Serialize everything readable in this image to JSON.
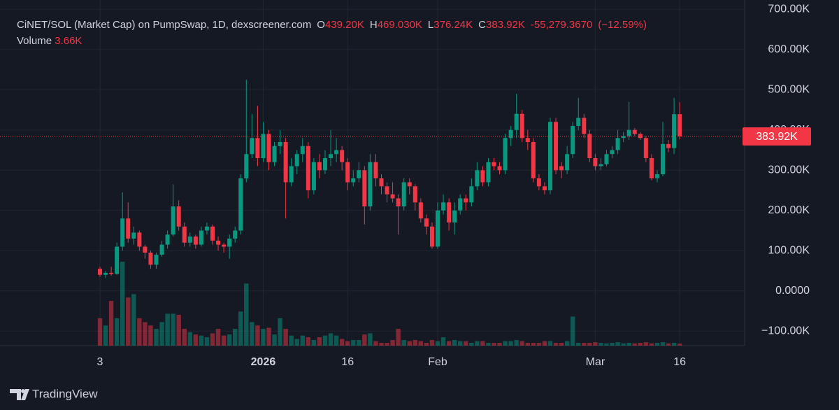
{
  "header": {
    "title": "CiNET/SOL (Market Cap) on PumpSwap, 1D, dexscreener.com",
    "ohlc": [
      {
        "key": "O",
        "label": "439.20K"
      },
      {
        "key": "H",
        "label": "469.030K"
      },
      {
        "key": "L",
        "label": "376.24K"
      },
      {
        "key": "C",
        "label": "383.92K"
      }
    ],
    "change": "-55,279.3670",
    "change_pct": "(−12.59%)",
    "volume_label": "Volume",
    "volume_value": "3.66K"
  },
  "brand": "TradingView",
  "chart_data": {
    "type": "candlestick",
    "categories": [
      "3",
      null,
      null,
      null,
      null,
      null,
      null,
      null,
      null,
      null,
      null,
      null,
      null,
      null,
      null,
      null,
      null,
      null,
      null,
      null,
      null,
      null,
      null,
      null,
      null,
      null,
      null,
      null,
      null,
      "2026",
      null,
      null,
      null,
      null,
      null,
      null,
      null,
      null,
      null,
      null,
      null,
      null,
      null,
      null,
      "16",
      null,
      null,
      null,
      null,
      null,
      null,
      null,
      null,
      null,
      null,
      null,
      null,
      null,
      null,
      null,
      "Feb",
      null,
      null,
      null,
      null,
      null,
      null,
      null,
      null,
      null,
      null,
      null,
      null,
      null,
      null,
      null,
      null,
      null,
      null,
      null,
      null,
      null,
      null,
      null,
      null,
      null,
      null,
      null,
      "Mar",
      null,
      null,
      null,
      null,
      null,
      null,
      null,
      null,
      null,
      null,
      null,
      null,
      null,
      null,
      "16"
    ],
    "open": [
      55000,
      40000,
      45000,
      42000,
      110000,
      180000,
      130000,
      145000,
      110000,
      95000,
      65000,
      90000,
      115000,
      140000,
      210000,
      160000,
      120000,
      135000,
      115000,
      150000,
      160000,
      125000,
      115000,
      110000,
      130000,
      150000,
      280000,
      340000,
      380000,
      330000,
      390000,
      320000,
      360000,
      370000,
      270000,
      310000,
      340000,
      360000,
      250000,
      320000,
      300000,
      330000,
      340000,
      350000,
      320000,
      270000,
      280000,
      300000,
      210000,
      320000,
      280000,
      260000,
      240000,
      230000,
      210000,
      270000,
      260000,
      220000,
      180000,
      160000,
      110000,
      200000,
      220000,
      170000,
      200000,
      230000,
      220000,
      260000,
      300000,
      270000,
      320000,
      310000,
      300000,
      380000,
      400000,
      440000,
      380000,
      370000,
      280000,
      260000,
      250000,
      420000,
      310000,
      300000,
      340000,
      410000,
      430000,
      390000,
      330000,
      310000,
      315000,
      340000,
      350000,
      380000,
      385000,
      400000,
      390000,
      380000,
      330000,
      280000,
      290000,
      365000,
      355000,
      439200
    ],
    "high": [
      60000,
      50000,
      60000,
      120000,
      245000,
      220000,
      160000,
      150000,
      115000,
      100000,
      95000,
      125000,
      150000,
      265000,
      225000,
      170000,
      145000,
      140000,
      160000,
      170000,
      165000,
      135000,
      120000,
      140000,
      160000,
      290000,
      525000,
      440000,
      460000,
      420000,
      400000,
      370000,
      400000,
      380000,
      330000,
      350000,
      380000,
      370000,
      330000,
      340000,
      350000,
      400000,
      380000,
      360000,
      330000,
      300000,
      320000,
      310000,
      340000,
      340000,
      290000,
      270000,
      270000,
      240000,
      280000,
      280000,
      265000,
      230000,
      190000,
      170000,
      220000,
      240000,
      230000,
      220000,
      240000,
      240000,
      280000,
      320000,
      310000,
      330000,
      330000,
      320000,
      390000,
      410000,
      490000,
      450000,
      400000,
      380000,
      290000,
      270000,
      430000,
      430000,
      320000,
      360000,
      420000,
      480000,
      440000,
      400000,
      340000,
      330000,
      350000,
      360000,
      400000,
      395000,
      470000,
      405000,
      395000,
      385000,
      340000,
      300000,
      420000,
      375000,
      480000,
      469030
    ],
    "low": [
      35000,
      32000,
      38000,
      40000,
      100000,
      120000,
      115000,
      100000,
      80000,
      55000,
      55000,
      85000,
      105000,
      135000,
      150000,
      110000,
      110000,
      105000,
      110000,
      140000,
      115000,
      100000,
      95000,
      80000,
      120000,
      140000,
      270000,
      330000,
      310000,
      320000,
      300000,
      310000,
      340000,
      180000,
      260000,
      290000,
      320000,
      230000,
      240000,
      280000,
      290000,
      310000,
      320000,
      300000,
      250000,
      260000,
      270000,
      165000,
      200000,
      260000,
      240000,
      220000,
      220000,
      140000,
      200000,
      240000,
      200000,
      170000,
      140000,
      105000,
      105000,
      190000,
      150000,
      140000,
      190000,
      200000,
      210000,
      250000,
      260000,
      260000,
      300000,
      290000,
      290000,
      360000,
      380000,
      370000,
      350000,
      270000,
      250000,
      240000,
      240000,
      290000,
      280000,
      290000,
      330000,
      400000,
      380000,
      320000,
      300000,
      300000,
      310000,
      330000,
      340000,
      370000,
      375000,
      385000,
      375000,
      320000,
      275000,
      270000,
      285000,
      345000,
      340000,
      376240
    ],
    "close": [
      40000,
      45000,
      42000,
      110000,
      180000,
      130000,
      145000,
      110000,
      95000,
      65000,
      90000,
      115000,
      140000,
      210000,
      160000,
      120000,
      135000,
      115000,
      150000,
      160000,
      125000,
      115000,
      110000,
      130000,
      150000,
      280000,
      340000,
      380000,
      330000,
      390000,
      320000,
      360000,
      370000,
      270000,
      310000,
      340000,
      360000,
      250000,
      320000,
      300000,
      330000,
      340000,
      350000,
      320000,
      270000,
      280000,
      300000,
      210000,
      320000,
      280000,
      260000,
      240000,
      230000,
      210000,
      270000,
      260000,
      220000,
      180000,
      160000,
      110000,
      200000,
      220000,
      170000,
      200000,
      230000,
      220000,
      260000,
      300000,
      270000,
      320000,
      310000,
      300000,
      380000,
      400000,
      440000,
      380000,
      370000,
      280000,
      260000,
      250000,
      420000,
      300000,
      300000,
      340000,
      410000,
      430000,
      390000,
      330000,
      310000,
      315000,
      340000,
      350000,
      380000,
      385000,
      400000,
      390000,
      380000,
      330000,
      280000,
      290000,
      365000,
      355000,
      439199.367,
      383920
    ],
    "volume": [
      49000,
      36000,
      80000,
      49000,
      150000,
      86000,
      92000,
      49000,
      42000,
      36000,
      30000,
      42000,
      57000,
      57000,
      55000,
      30000,
      24000,
      20000,
      18000,
      15000,
      22000,
      30000,
      18000,
      20000,
      30000,
      61000,
      111000,
      42000,
      36000,
      30000,
      32000,
      20000,
      49000,
      30000,
      18000,
      12000,
      18000,
      15000,
      10000,
      15000,
      18000,
      22000,
      18000,
      12000,
      8000,
      10000,
      10000,
      20000,
      22000,
      8000,
      5000,
      5000,
      10000,
      30000,
      10000,
      8000,
      10000,
      8000,
      5000,
      10000,
      8000,
      15000,
      8000,
      10000,
      8000,
      8000,
      5000,
      8000,
      8000,
      5000,
      5000,
      5000,
      8000,
      8000,
      10000,
      8000,
      5000,
      5000,
      5000,
      8000,
      8000,
      5000,
      5000,
      8000,
      52000,
      5000,
      5000,
      5000,
      6000,
      5000,
      4000,
      5000,
      6000,
      4000,
      5000,
      4000,
      5000,
      6000,
      4000,
      5000,
      6000,
      4000,
      5000,
      3660
    ],
    "volume_lim": [
      0,
      617500
    ],
    "last_price_label": "383.92K",
    "up_color": "#089981",
    "down_color": "#f23645",
    "ylim": [
      -136000,
      723000
    ],
    "yticks": [
      {
        "value": 700000,
        "label": "700.00K"
      },
      {
        "value": 600000,
        "label": "600.00K"
      },
      {
        "value": 500000,
        "label": "500.00K"
      },
      {
        "value": 400000,
        "label": "400.00K"
      },
      {
        "value": 300000,
        "label": "300.00K"
      },
      {
        "value": 200000,
        "label": "200.00K"
      },
      {
        "value": 100000,
        "label": "100.00K"
      },
      {
        "value": 0,
        "label": "0.0000"
      },
      {
        "value": -100000,
        "label": "−100.00K"
      }
    ],
    "grid": true
  }
}
